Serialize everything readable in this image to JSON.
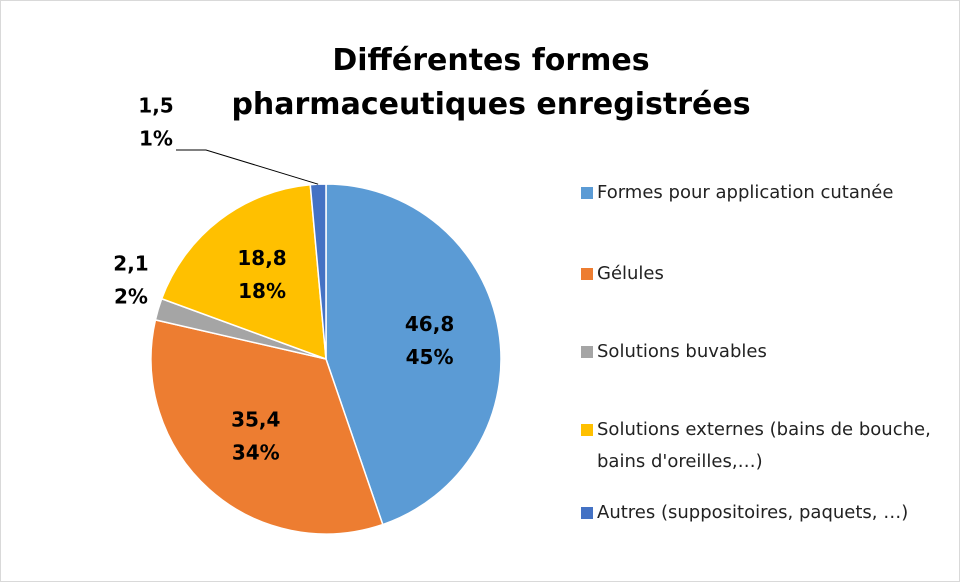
{
  "chart_data": {
    "type": "pie",
    "title": "Différentes formes pharmaceutiques enregistrées",
    "categories": [
      "Formes pour application cutanée",
      "Gélules",
      "Solutions buvables",
      "Solutions externes (bains de bouche, bains d'oreilles,…)",
      "Autres (suppositoires, paquets, …)"
    ],
    "values": [
      46.8,
      35.4,
      2.1,
      18.8,
      1.5
    ],
    "value_labels": [
      "46,8",
      "35,4",
      "2,1",
      "18,8",
      "1,5"
    ],
    "percent_labels": [
      "45%",
      "34%",
      "2%",
      "18%",
      "1%"
    ],
    "colors": [
      "#5b9bd5",
      "#ed7d31",
      "#a5a5a5",
      "#ffc000",
      "#4472c4"
    ],
    "legend": "right"
  }
}
